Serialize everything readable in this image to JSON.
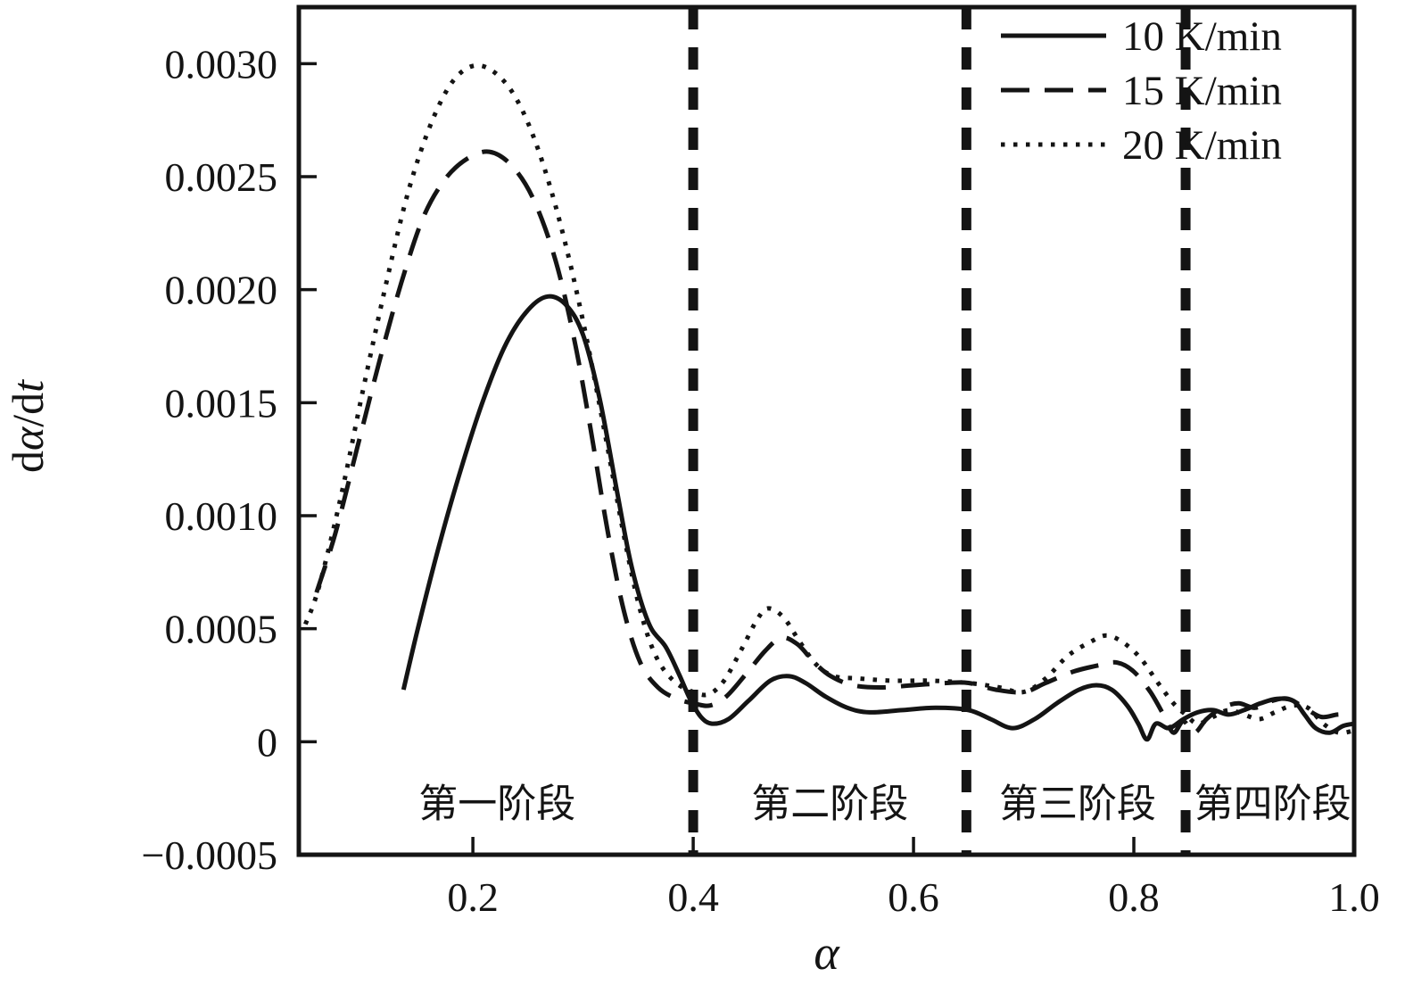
{
  "colors": {
    "line": "#141414",
    "background": "#ffffff"
  },
  "axes": {
    "x_label": "α",
    "y_label_parts": [
      {
        "text": "d",
        "italic": false
      },
      {
        "text": "α",
        "italic": true
      },
      {
        "text": "/d",
        "italic": false
      },
      {
        "text": "t",
        "italic": true
      }
    ]
  },
  "legend": {
    "items": [
      {
        "label": "10 K/min",
        "style": "solid"
      },
      {
        "label": "15 K/min",
        "style": "dashed"
      },
      {
        "label": "20 K/min",
        "style": "dotted"
      }
    ]
  },
  "chart_data": {
    "type": "line",
    "title": "",
    "xlabel": "α",
    "ylabel": "dα/dt",
    "grid": false,
    "legend_position": "top-right-inside",
    "xlim": [
      0.042,
      1.0
    ],
    "ylim": [
      -0.0005,
      0.00325
    ],
    "x_ticks": [
      0.2,
      0.4,
      0.6,
      0.8,
      1.0
    ],
    "x_tick_labels": [
      "0.2",
      "0.4",
      "0.6",
      "0.8",
      "1.0"
    ],
    "y_ticks": [
      -0.0005,
      0,
      0.0005,
      0.001,
      0.0015,
      0.002,
      0.0025,
      0.003
    ],
    "y_tick_labels": [
      "−0.0005",
      "0",
      "0.0005",
      "0.0010",
      "0.0015",
      "0.0020",
      "0.0025",
      "0.0030"
    ],
    "stage_dividers": [
      0.4,
      0.648,
      0.847
    ],
    "stage_label_y": -0.00027,
    "stage_labels": [
      {
        "text": "第一阶段",
        "x": 0.222
      },
      {
        "text": "第二阶段",
        "x": 0.524
      },
      {
        "text": "第三阶段",
        "x": 0.749
      },
      {
        "text": "第四阶段",
        "x": 0.926
      }
    ],
    "series": [
      {
        "name": "10 K/min",
        "style": "solid",
        "points": [
          [
            0.137,
            0.00023
          ],
          [
            0.15,
            0.0005
          ],
          [
            0.17,
            0.00088
          ],
          [
            0.19,
            0.00122
          ],
          [
            0.21,
            0.00152
          ],
          [
            0.23,
            0.00176
          ],
          [
            0.25,
            0.00191
          ],
          [
            0.268,
            0.00197
          ],
          [
            0.285,
            0.00193
          ],
          [
            0.3,
            0.0018
          ],
          [
            0.315,
            0.00152
          ],
          [
            0.33,
            0.00113
          ],
          [
            0.342,
            0.00082
          ],
          [
            0.352,
            0.00063
          ],
          [
            0.362,
            0.0005
          ],
          [
            0.375,
            0.00042
          ],
          [
            0.387,
            0.0003
          ],
          [
            0.397,
            0.00019
          ],
          [
            0.407,
            0.00011
          ],
          [
            0.417,
            8e-05
          ],
          [
            0.432,
            0.0001
          ],
          [
            0.45,
            0.00018
          ],
          [
            0.47,
            0.00027
          ],
          [
            0.487,
            0.00029
          ],
          [
            0.502,
            0.00026
          ],
          [
            0.52,
            0.0002
          ],
          [
            0.54,
            0.00015
          ],
          [
            0.56,
            0.00013
          ],
          [
            0.59,
            0.00014
          ],
          [
            0.62,
            0.00015
          ],
          [
            0.65,
            0.00014
          ],
          [
            0.67,
            0.0001
          ],
          [
            0.69,
            6e-05
          ],
          [
            0.71,
            0.0001
          ],
          [
            0.73,
            0.00017
          ],
          [
            0.75,
            0.00023
          ],
          [
            0.766,
            0.00025
          ],
          [
            0.78,
            0.00023
          ],
          [
            0.794,
            0.00016
          ],
          [
            0.804,
            8e-05
          ],
          [
            0.812,
            1e-05
          ],
          [
            0.82,
            8e-05
          ],
          [
            0.832,
            6e-05
          ],
          [
            0.845,
            0.0001
          ],
          [
            0.858,
            0.00013
          ],
          [
            0.872,
            0.00014
          ],
          [
            0.886,
            0.00012
          ],
          [
            0.9,
            0.00014
          ],
          [
            0.915,
            0.00017
          ],
          [
            0.93,
            0.00019
          ],
          [
            0.945,
            0.00018
          ],
          [
            0.955,
            0.00012
          ],
          [
            0.965,
            6e-05
          ],
          [
            0.978,
            4e-05
          ],
          [
            0.99,
            7e-05
          ],
          [
            1.0,
            8e-05
          ]
        ]
      },
      {
        "name": "15 K/min",
        "style": "dashed",
        "points": [
          [
            0.058,
            0.00066
          ],
          [
            0.075,
            0.00092
          ],
          [
            0.095,
            0.0013
          ],
          [
            0.115,
            0.00168
          ],
          [
            0.135,
            0.00203
          ],
          [
            0.155,
            0.00232
          ],
          [
            0.175,
            0.00249
          ],
          [
            0.195,
            0.00258
          ],
          [
            0.215,
            0.00261
          ],
          [
            0.235,
            0.00255
          ],
          [
            0.255,
            0.0024
          ],
          [
            0.275,
            0.00213
          ],
          [
            0.292,
            0.00178
          ],
          [
            0.307,
            0.00138
          ],
          [
            0.322,
            0.00094
          ],
          [
            0.337,
            0.00058
          ],
          [
            0.352,
            0.00035
          ],
          [
            0.368,
            0.00024
          ],
          [
            0.385,
            0.00019
          ],
          [
            0.4,
            0.00017
          ],
          [
            0.415,
            0.00016
          ],
          [
            0.43,
            0.0002
          ],
          [
            0.448,
            0.0003
          ],
          [
            0.465,
            0.0004
          ],
          [
            0.48,
            0.00046
          ],
          [
            0.495,
            0.00043
          ],
          [
            0.51,
            0.00035
          ],
          [
            0.525,
            0.00029
          ],
          [
            0.545,
            0.00025
          ],
          [
            0.57,
            0.00024
          ],
          [
            0.6,
            0.00025
          ],
          [
            0.63,
            0.00026
          ],
          [
            0.65,
            0.00026
          ],
          [
            0.675,
            0.00023
          ],
          [
            0.7,
            0.00022
          ],
          [
            0.72,
            0.00026
          ],
          [
            0.745,
            0.00031
          ],
          [
            0.77,
            0.00034
          ],
          [
            0.785,
            0.00035
          ],
          [
            0.8,
            0.00031
          ],
          [
            0.815,
            0.00022
          ],
          [
            0.828,
            0.00011
          ],
          [
            0.836,
            4e-05
          ],
          [
            0.845,
            9e-05
          ],
          [
            0.855,
            4e-05
          ],
          [
            0.866,
            0.0001
          ],
          [
            0.88,
            0.00015
          ],
          [
            0.895,
            0.00017
          ],
          [
            0.91,
            0.00015
          ],
          [
            0.925,
            0.00018
          ],
          [
            0.94,
            0.00019
          ],
          [
            0.955,
            0.00015
          ],
          [
            0.97,
            0.00011
          ],
          [
            0.985,
            0.00012
          ],
          [
            1.0,
            0.00012
          ]
        ]
      },
      {
        "name": "20 K/min",
        "style": "dotted",
        "points": [
          [
            0.048,
            0.00052
          ],
          [
            0.06,
            0.00068
          ],
          [
            0.08,
            0.00108
          ],
          [
            0.1,
            0.00155
          ],
          [
            0.12,
            0.002
          ],
          [
            0.14,
            0.00241
          ],
          [
            0.16,
            0.00271
          ],
          [
            0.18,
            0.00291
          ],
          [
            0.2,
            0.00299
          ],
          [
            0.22,
            0.00296
          ],
          [
            0.24,
            0.00284
          ],
          [
            0.26,
            0.00261
          ],
          [
            0.28,
            0.00228
          ],
          [
            0.3,
            0.00186
          ],
          [
            0.32,
            0.00136
          ],
          [
            0.338,
            0.00089
          ],
          [
            0.352,
            0.00058
          ],
          [
            0.366,
            0.00038
          ],
          [
            0.382,
            0.00027
          ],
          [
            0.4,
            0.00022
          ],
          [
            0.414,
            0.00021
          ],
          [
            0.428,
            0.00027
          ],
          [
            0.444,
            0.00041
          ],
          [
            0.458,
            0.00054
          ],
          [
            0.468,
            0.00059
          ],
          [
            0.482,
            0.00055
          ],
          [
            0.497,
            0.00044
          ],
          [
            0.512,
            0.00034
          ],
          [
            0.528,
            0.00029
          ],
          [
            0.55,
            0.00028
          ],
          [
            0.58,
            0.00027
          ],
          [
            0.615,
            0.00027
          ],
          [
            0.65,
            0.00026
          ],
          [
            0.678,
            0.00024
          ],
          [
            0.7,
            0.00022
          ],
          [
            0.72,
            0.00028
          ],
          [
            0.74,
            0.00038
          ],
          [
            0.76,
            0.00044
          ],
          [
            0.775,
            0.00047
          ],
          [
            0.79,
            0.00044
          ],
          [
            0.806,
            0.00037
          ],
          [
            0.822,
            0.00026
          ],
          [
            0.836,
            0.00017
          ],
          [
            0.847,
            0.00012
          ],
          [
            0.858,
            8e-05
          ],
          [
            0.872,
            0.00011
          ],
          [
            0.886,
            0.00014
          ],
          [
            0.9,
            0.00012
          ],
          [
            0.914,
            0.0001
          ],
          [
            0.928,
            0.00013
          ],
          [
            0.944,
            0.00016
          ],
          [
            0.958,
            0.00015
          ],
          [
            0.972,
            8e-05
          ],
          [
            0.986,
            4e-05
          ],
          [
            1.0,
            5e-05
          ]
        ]
      }
    ]
  }
}
